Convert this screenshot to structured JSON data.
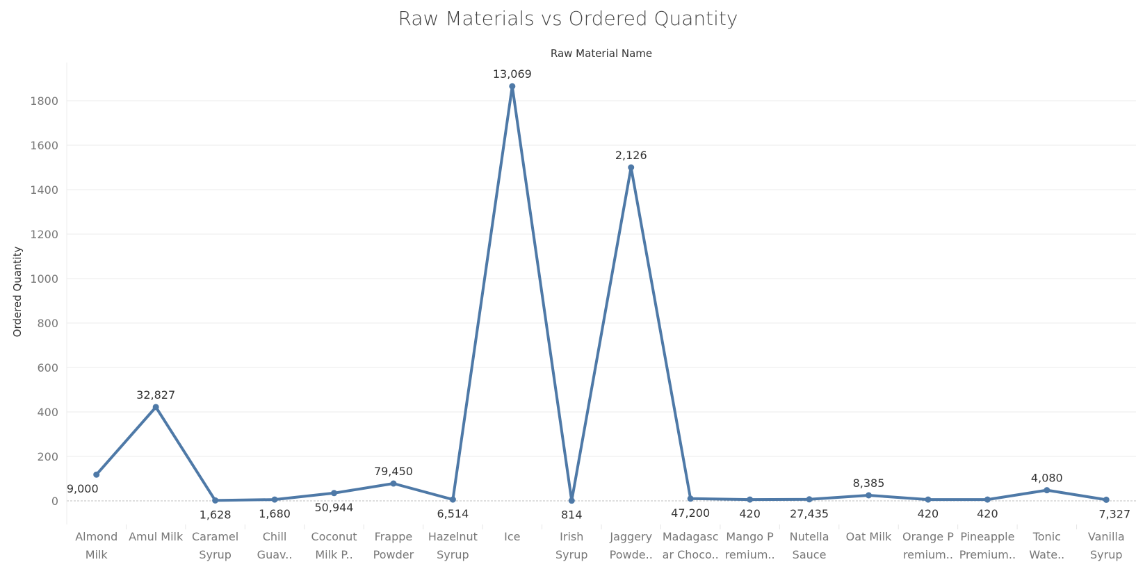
{
  "chart_data": {
    "type": "line",
    "title": "Raw Materials vs Ordered Quantity",
    "xlabel": "Raw Material Name",
    "ylabel": "Ordered Quantity",
    "ylim": [
      -100,
      1950
    ],
    "yticks": [
      0,
      200,
      400,
      600,
      800,
      1000,
      1200,
      1400,
      1600,
      1800
    ],
    "grid": true,
    "color": "#4e79a7",
    "categories": [
      [
        "Almond",
        "Milk"
      ],
      [
        "Amul Milk"
      ],
      [
        "Caramel",
        "Syrup"
      ],
      [
        "Chill",
        "Guav.."
      ],
      [
        "Coconut",
        "Milk P.."
      ],
      [
        "Frappe",
        "Powder"
      ],
      [
        "Hazelnut",
        "Syrup"
      ],
      [
        "Ice"
      ],
      [
        "Irish",
        "Syrup"
      ],
      [
        "Jaggery",
        "Powde.."
      ],
      [
        "Madagasc",
        "ar Choco.."
      ],
      [
        "Mango P",
        "remium.."
      ],
      [
        "Nutella",
        "Sauce"
      ],
      [
        "Oat Milk"
      ],
      [
        "Orange P",
        "remium.."
      ],
      [
        "Pineapple",
        "Premium.."
      ],
      [
        "Tonic",
        "Wate.."
      ],
      [
        "Vanilla",
        "Syrup"
      ]
    ],
    "values": [
      118,
      422,
      2,
      6,
      35,
      78,
      6,
      1865,
      1,
      1500,
      10,
      6,
      7,
      25,
      6,
      6,
      48,
      5
    ],
    "data_labels": [
      "9,000",
      "32,827",
      "1,628",
      "1,680",
      "50,944",
      "79,450",
      "6,514",
      "13,069",
      "814",
      "2,126",
      "47,200",
      "420",
      "27,435",
      "8,385",
      "420",
      "420",
      "4,080",
      "7,327"
    ],
    "label_positions": [
      "below",
      "above",
      "below",
      "below",
      "below",
      "above",
      "below",
      "above",
      "below",
      "above",
      "below",
      "below",
      "below",
      "above",
      "below",
      "below",
      "above",
      "below"
    ]
  }
}
